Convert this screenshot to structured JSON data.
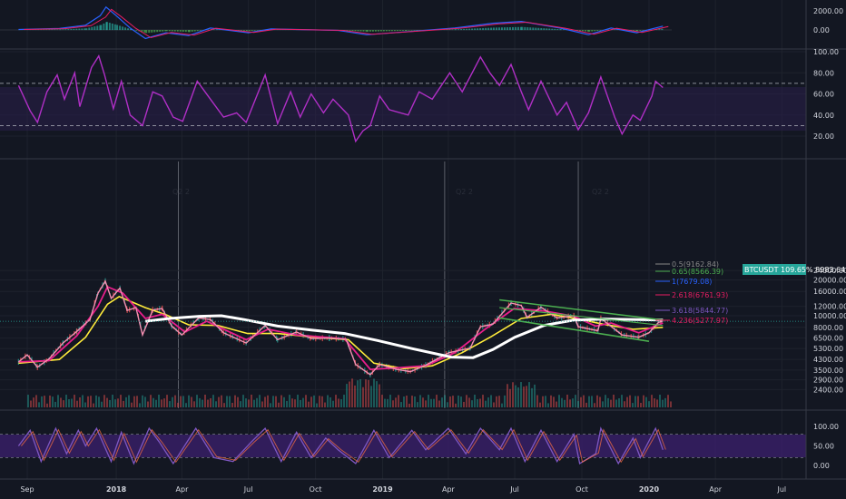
{
  "chart_data": {
    "type": "line",
    "symbol": "BTCUSDT",
    "last_price_tag": "BTCUSDT 109.65%  8983.64",
    "last_price": 8983.64,
    "colors": {
      "background": "#131722",
      "price": "#f48fb1",
      "ma_fast": "#e91e8c",
      "ma_mid": "#ffeb3b",
      "ma_slow": "#ffffff",
      "channel": "#4caf50",
      "rsi": "#b02fc6",
      "macd": "#2962ff",
      "signal": "#e91e63",
      "stoch_k": "#7e57c2",
      "stoch_d": "#ff7043",
      "volume_up": "#26a69a",
      "volume_down": "#ef5350"
    },
    "x_labels": [
      "Sep",
      "2018",
      "Apr",
      "Jul",
      "Oct",
      "2019",
      "Apr",
      "Jul",
      "Oct",
      "2020",
      "Apr",
      "Jul"
    ],
    "macd_axis": [
      "2000.00",
      "0.00"
    ],
    "rsi_axis": [
      "100.00",
      "80.00",
      "60.00",
      "40.00",
      "20.00"
    ],
    "price_axis": [
      "24000.00",
      "20000.00",
      "16000.00",
      "12000.00",
      "10000.00",
      "8000.00",
      "6500.00",
      "5300.00",
      "4300.00",
      "3500.00",
      "2900.00",
      "2400.00"
    ],
    "stoch_axis": [
      "100.00",
      "50.00",
      "0.00"
    ],
    "watermarks": [
      "Q2 2",
      "Q2 2",
      "Q2 2"
    ],
    "fib_levels": [
      {
        "label": "0.5(9162.84)",
        "value": 9162.84,
        "color": "#888888"
      },
      {
        "label": "0.65(8566.39)",
        "value": 8566.39,
        "color": "#4caf50"
      },
      {
        "label": "1(7679.08)",
        "value": 7679.08,
        "color": "#2962ff"
      },
      {
        "label": "2.618(6761.93)",
        "value": 6761.93,
        "color": "#e91e63"
      },
      {
        "label": "3.618(5844.77)",
        "value": 5844.77,
        "color": "#7e57c2"
      },
      {
        "label": "4.236(5277.97)",
        "value": 5277.97,
        "color": "#e91e63"
      }
    ],
    "price_series": [
      [
        "2017-08-20",
        4100
      ],
      [
        "2017-09-01",
        4700
      ],
      [
        "2017-09-15",
        3700
      ],
      [
        "2017-10-01",
        4350
      ],
      [
        "2017-10-20",
        5900
      ],
      [
        "2017-11-08",
        7400
      ],
      [
        "2017-11-26",
        9300
      ],
      [
        "2017-12-07",
        15500
      ],
      [
        "2017-12-17",
        19500
      ],
      [
        "2017-12-25",
        14000
      ],
      [
        "2018-01-06",
        17100
      ],
      [
        "2018-01-16",
        11100
      ],
      [
        "2018-01-28",
        11700
      ],
      [
        "2018-02-06",
        6900
      ],
      [
        "2018-02-20",
        11200
      ],
      [
        "2018-03-05",
        11500
      ],
      [
        "2018-03-18",
        8200
      ],
      [
        "2018-04-01",
        6900
      ],
      [
        "2018-04-24",
        9600
      ],
      [
        "2018-05-10",
        9300
      ],
      [
        "2018-05-28",
        7200
      ],
      [
        "2018-06-28",
        5900
      ],
      [
        "2018-07-24",
        8300
      ],
      [
        "2018-08-10",
        6300
      ],
      [
        "2018-09-05",
        7300
      ],
      [
        "2018-09-25",
        6450
      ],
      [
        "2018-10-20",
        6500
      ],
      [
        "2018-11-12",
        6350
      ],
      [
        "2018-11-25",
        3900
      ],
      [
        "2018-12-15",
        3200
      ],
      [
        "2018-12-28",
        3900
      ],
      [
        "2019-01-20",
        3550
      ],
      [
        "2019-02-08",
        3400
      ],
      [
        "2019-03-01",
        3850
      ],
      [
        "2019-04-02",
        4900
      ],
      [
        "2019-05-01",
        5350
      ],
      [
        "2019-05-15",
        8100
      ],
      [
        "2019-06-01",
        8500
      ],
      [
        "2019-06-26",
        12800
      ],
      [
        "2019-07-10",
        12200
      ],
      [
        "2019-07-18",
        9700
      ],
      [
        "2019-08-06",
        11800
      ],
      [
        "2019-08-28",
        9600
      ],
      [
        "2019-09-20",
        10000
      ],
      [
        "2019-09-26",
        8100
      ],
      [
        "2019-10-23",
        7500
      ],
      [
        "2019-10-27",
        9500
      ],
      [
        "2019-11-25",
        6900
      ],
      [
        "2019-12-18",
        6600
      ],
      [
        "2020-01-01",
        7200
      ],
      [
        "2020-01-14",
        8800
      ],
      [
        "2020-01-20",
        8983.64
      ]
    ],
    "ma_fast": [
      [
        "2017-08-20",
        4100
      ],
      [
        "2017-10-01",
        4200
      ],
      [
        "2017-11-08",
        6800
      ],
      [
        "2017-12-07",
        12000
      ],
      [
        "2017-12-20",
        17500
      ],
      [
        "2018-01-10",
        15500
      ],
      [
        "2018-02-10",
        9500
      ],
      [
        "2018-03-05",
        10300
      ],
      [
        "2018-04-05",
        7300
      ],
      [
        "2018-05-05",
        9000
      ],
      [
        "2018-06-28",
        6300
      ],
      [
        "2018-07-28",
        7700
      ],
      [
        "2018-09-05",
        6900
      ],
      [
        "2018-11-10",
        6400
      ],
      [
        "2018-12-15",
        3550
      ],
      [
        "2019-01-20",
        3650
      ],
      [
        "2019-03-01",
        3800
      ],
      [
        "2019-04-10",
        4900
      ],
      [
        "2019-05-20",
        7600
      ],
      [
        "2019-06-30",
        11500
      ],
      [
        "2019-08-10",
        11000
      ],
      [
        "2019-09-20",
        9900
      ],
      [
        "2019-10-20",
        8200
      ],
      [
        "2019-11-10",
        8700
      ],
      [
        "2019-12-18",
        7200
      ],
      [
        "2020-01-20",
        8700
      ]
    ],
    "ma_mid": [
      [
        "2017-08-20",
        4000
      ],
      [
        "2017-10-15",
        4300
      ],
      [
        "2017-11-20",
        6600
      ],
      [
        "2017-12-20",
        12500
      ],
      [
        "2018-01-05",
        14500
      ],
      [
        "2018-02-10",
        11700
      ],
      [
        "2018-03-10",
        10200
      ],
      [
        "2018-04-10",
        8400
      ],
      [
        "2018-05-20",
        8300
      ],
      [
        "2018-06-30",
        7100
      ],
      [
        "2018-08-10",
        7100
      ],
      [
        "2018-09-20",
        6700
      ],
      [
        "2018-11-15",
        6300
      ],
      [
        "2018-12-20",
        4000
      ],
      [
        "2019-01-30",
        3600
      ],
      [
        "2019-03-10",
        3800
      ],
      [
        "2019-04-20",
        4900
      ],
      [
        "2019-05-30",
        6700
      ],
      [
        "2019-07-10",
        9500
      ],
      [
        "2019-08-20",
        10300
      ],
      [
        "2019-09-30",
        9300
      ],
      [
        "2019-10-30",
        8500
      ],
      [
        "2019-12-10",
        7700
      ],
      [
        "2020-01-20",
        8000
      ]
    ],
    "ma_slow": [
      [
        "2018-02-10",
        9000
      ],
      [
        "2018-03-15",
        9500
      ],
      [
        "2018-04-25",
        9900
      ],
      [
        "2018-05-25",
        10000
      ],
      [
        "2018-06-25",
        9300
      ],
      [
        "2018-08-10",
        8200
      ],
      [
        "2018-09-25",
        7600
      ],
      [
        "2018-11-10",
        7100
      ],
      [
        "2018-12-25",
        6200
      ],
      [
        "2019-02-10",
        5300
      ],
      [
        "2019-04-05",
        4500
      ],
      [
        "2019-05-05",
        4450
      ],
      [
        "2019-06-01",
        5200
      ],
      [
        "2019-07-01",
        6600
      ],
      [
        "2019-08-10",
        8300
      ],
      [
        "2019-09-20",
        9200
      ],
      [
        "2019-11-01",
        9400
      ],
      [
        "2019-12-15",
        9300
      ],
      [
        "2020-01-20",
        9200
      ]
    ],
    "channel_upper": [
      [
        "2019-06-10",
        13600
      ],
      [
        "2020-01-20",
        9200
      ]
    ],
    "channel_lower": [
      [
        "2019-06-10",
        9600
      ],
      [
        "2020-01-01",
        6100
      ]
    ],
    "rsi_series": [
      [
        "2017-08-20",
        68
      ],
      [
        "2017-09-05",
        44
      ],
      [
        "2017-09-15",
        33
      ],
      [
        "2017-09-28",
        62
      ],
      [
        "2017-10-12",
        78
      ],
      [
        "2017-10-22",
        55
      ],
      [
        "2017-11-05",
        80
      ],
      [
        "2017-11-12",
        48
      ],
      [
        "2017-11-28",
        85
      ],
      [
        "2017-12-08",
        96
      ],
      [
        "2017-12-16",
        78
      ],
      [
        "2017-12-28",
        46
      ],
      [
        "2018-01-08",
        72
      ],
      [
        "2018-01-20",
        40
      ],
      [
        "2018-02-06",
        30
      ],
      [
        "2018-02-20",
        62
      ],
      [
        "2018-03-05",
        58
      ],
      [
        "2018-03-20",
        38
      ],
      [
        "2018-04-02",
        34
      ],
      [
        "2018-04-22",
        72
      ],
      [
        "2018-05-10",
        55
      ],
      [
        "2018-05-28",
        38
      ],
      [
        "2018-06-15",
        42
      ],
      [
        "2018-06-28",
        33
      ],
      [
        "2018-07-24",
        78
      ],
      [
        "2018-08-10",
        32
      ],
      [
        "2018-08-28",
        62
      ],
      [
        "2018-09-10",
        38
      ],
      [
        "2018-09-25",
        60
      ],
      [
        "2018-10-12",
        42
      ],
      [
        "2018-10-25",
        55
      ],
      [
        "2018-11-15",
        40
      ],
      [
        "2018-11-25",
        15
      ],
      [
        "2018-12-05",
        25
      ],
      [
        "2018-12-15",
        30
      ],
      [
        "2018-12-28",
        58
      ],
      [
        "2019-01-10",
        45
      ],
      [
        "2019-02-05",
        40
      ],
      [
        "2019-02-20",
        62
      ],
      [
        "2019-03-10",
        55
      ],
      [
        "2019-04-03",
        80
      ],
      [
        "2019-04-20",
        62
      ],
      [
        "2019-05-15",
        95
      ],
      [
        "2019-05-28",
        80
      ],
      [
        "2019-06-10",
        68
      ],
      [
        "2019-06-26",
        88
      ],
      [
        "2019-07-10",
        62
      ],
      [
        "2019-07-20",
        45
      ],
      [
        "2019-08-06",
        72
      ],
      [
        "2019-08-28",
        40
      ],
      [
        "2019-09-10",
        52
      ],
      [
        "2019-09-26",
        26
      ],
      [
        "2019-10-10",
        42
      ],
      [
        "2019-10-27",
        76
      ],
      [
        "2019-11-15",
        38
      ],
      [
        "2019-11-25",
        22
      ],
      [
        "2019-12-10",
        40
      ],
      [
        "2019-12-20",
        35
      ],
      [
        "2020-01-05",
        58
      ],
      [
        "2020-01-10",
        72
      ],
      [
        "2020-01-20",
        66
      ]
    ],
    "macd_series": [
      [
        "2017-08-20",
        50
      ],
      [
        "2017-10-15",
        150
      ],
      [
        "2017-11-20",
        500
      ],
      [
        "2017-12-10",
        1500
      ],
      [
        "2017-12-18",
        2400
      ],
      [
        "2018-01-01",
        1500
      ],
      [
        "2018-01-20",
        200
      ],
      [
        "2018-02-10",
        -900
      ],
      [
        "2018-03-10",
        -300
      ],
      [
        "2018-04-10",
        -600
      ],
      [
        "2018-05-10",
        200
      ],
      [
        "2018-07-01",
        -300
      ],
      [
        "2018-08-01",
        100
      ],
      [
        "2018-11-01",
        -50
      ],
      [
        "2018-12-10",
        -500
      ],
      [
        "2019-02-01",
        -200
      ],
      [
        "2019-04-10",
        200
      ],
      [
        "2019-06-01",
        700
      ],
      [
        "2019-07-10",
        900
      ],
      [
        "2019-09-01",
        200
      ],
      [
        "2019-10-10",
        -500
      ],
      [
        "2019-11-10",
        200
      ],
      [
        "2019-12-15",
        -300
      ],
      [
        "2020-01-20",
        400
      ]
    ],
    "stoch_series": [
      [
        "2017-08-20",
        50
      ],
      [
        "2017-09-05",
        90
      ],
      [
        "2017-09-20",
        10
      ],
      [
        "2017-10-10",
        95
      ],
      [
        "2017-10-25",
        30
      ],
      [
        "2017-11-10",
        90
      ],
      [
        "2017-11-20",
        50
      ],
      [
        "2017-12-05",
        95
      ],
      [
        "2017-12-25",
        10
      ],
      [
        "2018-01-08",
        85
      ],
      [
        "2018-01-25",
        5
      ],
      [
        "2018-02-15",
        95
      ],
      [
        "2018-03-01",
        60
      ],
      [
        "2018-03-20",
        5
      ],
      [
        "2018-04-20",
        95
      ],
      [
        "2018-05-15",
        20
      ],
      [
        "2018-06-10",
        10
      ],
      [
        "2018-07-05",
        60
      ],
      [
        "2018-07-24",
        95
      ],
      [
        "2018-08-15",
        10
      ],
      [
        "2018-09-05",
        85
      ],
      [
        "2018-09-25",
        20
      ],
      [
        "2018-10-15",
        70
      ],
      [
        "2018-11-01",
        40
      ],
      [
        "2018-11-25",
        5
      ],
      [
        "2018-12-20",
        90
      ],
      [
        "2019-01-10",
        20
      ],
      [
        "2019-02-10",
        90
      ],
      [
        "2019-03-01",
        40
      ],
      [
        "2019-04-01",
        95
      ],
      [
        "2019-04-25",
        30
      ],
      [
        "2019-05-15",
        95
      ],
      [
        "2019-06-10",
        40
      ],
      [
        "2019-06-26",
        95
      ],
      [
        "2019-07-15",
        10
      ],
      [
        "2019-08-06",
        90
      ],
      [
        "2019-08-28",
        10
      ],
      [
        "2019-09-20",
        80
      ],
      [
        "2019-09-28",
        5
      ],
      [
        "2019-10-20",
        30
      ],
      [
        "2019-10-27",
        95
      ],
      [
        "2019-11-20",
        5
      ],
      [
        "2019-12-10",
        70
      ],
      [
        "2019-12-20",
        20
      ],
      [
        "2020-01-10",
        95
      ],
      [
        "2020-01-20",
        40
      ]
    ]
  }
}
